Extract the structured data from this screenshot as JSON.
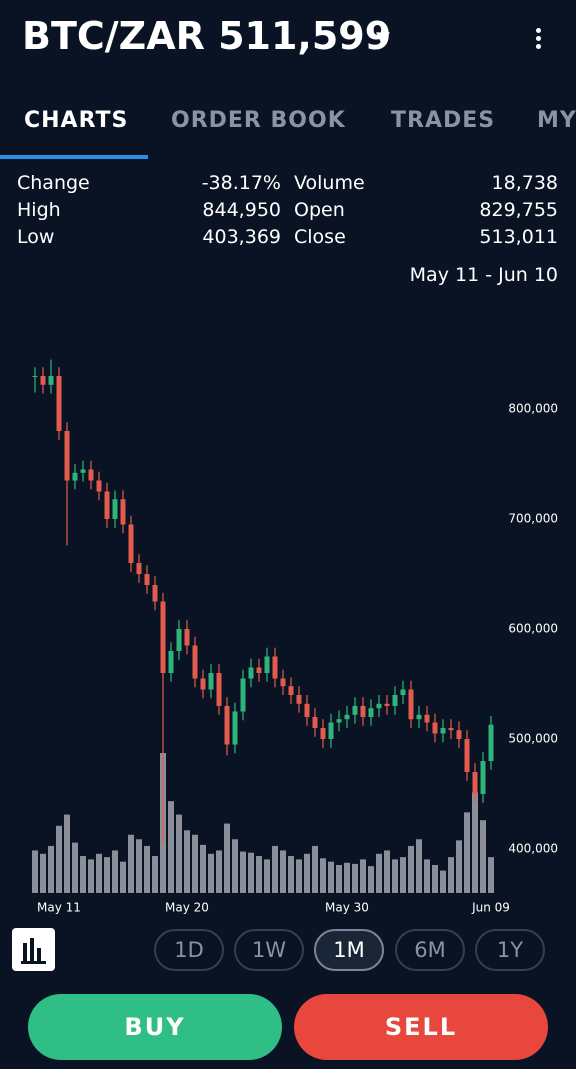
{
  "header": {
    "pair": "BTC/ZAR",
    "price": "511,599"
  },
  "tabs": {
    "items": [
      "CHARTS",
      "ORDER BOOK",
      "TRADES",
      "MY"
    ],
    "active": 0
  },
  "stats": [
    {
      "label": "Change",
      "value": "-38.17%"
    },
    {
      "label": "Volume",
      "value": "18,738"
    },
    {
      "label": "High",
      "value": "844,950"
    },
    {
      "label": "Open",
      "value": "829,755"
    },
    {
      "label": "Low",
      "value": "403,369"
    },
    {
      "label": "Close",
      "value": "513,011"
    }
  ],
  "date_range": "May 11 - Jun 10",
  "chart_data": {
    "type": "candlestick",
    "categories": [
      null,
      null,
      null,
      "May 11",
      null,
      null,
      null,
      null,
      null,
      null,
      null,
      null,
      null,
      null,
      null,
      null,
      null,
      null,
      null,
      "May 20",
      null,
      null,
      null,
      null,
      null,
      null,
      null,
      null,
      null,
      null,
      null,
      null,
      null,
      null,
      null,
      null,
      null,
      null,
      null,
      "May 30",
      null,
      null,
      null,
      null,
      null,
      null,
      null,
      null,
      null,
      null,
      null,
      null,
      null,
      null,
      null,
      null,
      null,
      "Jun 09"
    ],
    "open": [
      829755,
      830000,
      822000,
      830000,
      780000,
      735000,
      742000,
      745000,
      735000,
      725000,
      700000,
      718000,
      695000,
      660000,
      650000,
      640000,
      625000,
      560000,
      580000,
      600000,
      585000,
      555000,
      545000,
      560000,
      530000,
      495000,
      525000,
      555000,
      565000,
      560000,
      575000,
      555000,
      548000,
      540000,
      532000,
      520000,
      510000,
      500000,
      515000,
      518000,
      522000,
      530000,
      520000,
      528000,
      532000,
      530000,
      540000,
      545000,
      518000,
      522000,
      515000,
      505000,
      510000,
      508000,
      500000,
      470000,
      450000,
      480000
    ],
    "high": [
      838000,
      838000,
      844950,
      838000,
      788000,
      750000,
      753000,
      753000,
      743000,
      733000,
      726000,
      726000,
      703000,
      668000,
      658000,
      648000,
      633000,
      588000,
      608000,
      608000,
      593000,
      563000,
      568000,
      568000,
      538000,
      533000,
      563000,
      573000,
      573000,
      583000,
      583000,
      563000,
      556000,
      548000,
      540000,
      528000,
      518000,
      523000,
      526000,
      530000,
      538000,
      538000,
      536000,
      540000,
      540000,
      548000,
      553000,
      553000,
      530000,
      530000,
      523000,
      518000,
      518000,
      516000,
      508000,
      478000,
      488000,
      521000
    ],
    "low": [
      815000,
      814000,
      814000,
      772000,
      676000,
      727000,
      734000,
      727000,
      717000,
      692000,
      692000,
      687000,
      652000,
      642000,
      632000,
      617000,
      403369,
      552000,
      572000,
      577000,
      547000,
      537000,
      537000,
      522000,
      485000,
      487000,
      517000,
      547000,
      552000,
      552000,
      547000,
      540000,
      532000,
      524000,
      512000,
      502000,
      492000,
      492000,
      507000,
      510000,
      514000,
      512000,
      512000,
      520000,
      522000,
      522000,
      532000,
      510000,
      510000,
      507000,
      497000,
      497000,
      500000,
      492000,
      462000,
      442000,
      442000,
      472000
    ],
    "close": [
      830000,
      822000,
      830000,
      780000,
      735000,
      742000,
      745000,
      735000,
      725000,
      700000,
      718000,
      695000,
      660000,
      650000,
      640000,
      625000,
      560000,
      580000,
      600000,
      585000,
      555000,
      545000,
      560000,
      530000,
      495000,
      525000,
      555000,
      565000,
      560000,
      575000,
      555000,
      548000,
      540000,
      532000,
      520000,
      510000,
      500000,
      515000,
      518000,
      522000,
      530000,
      520000,
      528000,
      532000,
      530000,
      540000,
      545000,
      518000,
      522000,
      515000,
      505000,
      510000,
      508000,
      500000,
      470000,
      450000,
      480000,
      513011
    ],
    "volume": [
      380,
      350,
      420,
      600,
      700,
      450,
      330,
      300,
      350,
      320,
      380,
      280,
      520,
      480,
      420,
      330,
      1250,
      820,
      700,
      560,
      520,
      430,
      350,
      380,
      620,
      480,
      370,
      360,
      330,
      300,
      420,
      380,
      330,
      300,
      350,
      420,
      310,
      280,
      250,
      270,
      260,
      300,
      240,
      350,
      380,
      300,
      320,
      420,
      480,
      300,
      250,
      200,
      320,
      470,
      720,
      900,
      650,
      320
    ],
    "ylim": [
      360000,
      860000
    ],
    "yticks": [
      {
        "value": 400000,
        "label": "400,000"
      },
      {
        "value": 500000,
        "label": "500,000"
      },
      {
        "value": 600000,
        "label": "600,000"
      },
      {
        "value": 700000,
        "label": "700,000"
      },
      {
        "value": 800000,
        "label": "800,000"
      }
    ],
    "up_color": "#2fb57c",
    "down_color": "#e25b4d",
    "volume_color": "#8a8f99"
  },
  "periods": {
    "items": [
      "1D",
      "1W",
      "1M",
      "6M",
      "1Y"
    ],
    "active": 2
  },
  "actions": {
    "buy": "BUY",
    "sell": "SELL"
  }
}
